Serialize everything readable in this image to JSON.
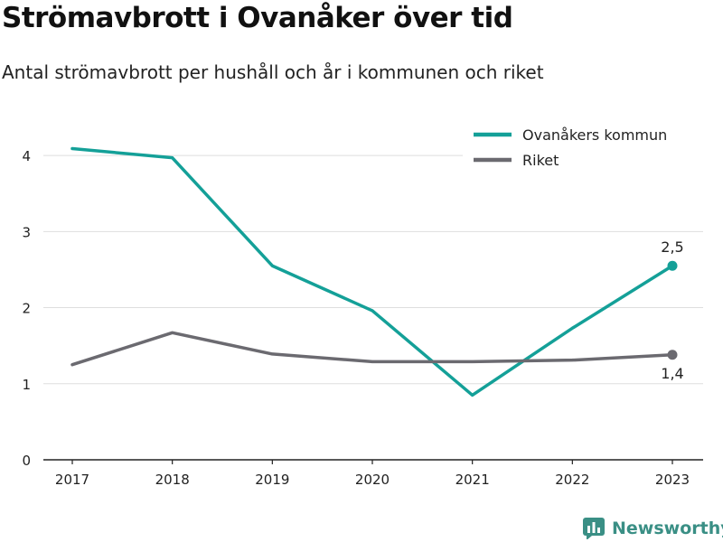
{
  "header": {
    "title": "Strömavbrott i Ovanåker över tid",
    "subtitle": "Antal strömavbrott per hushåll och år i kommunen och riket"
  },
  "brand": {
    "name": "Newsworthy",
    "icon": "newsworthy-logo-icon",
    "color": "#3a8f85"
  },
  "chart_data": {
    "type": "line",
    "title": "Strömavbrott i Ovanåker över tid",
    "subtitle": "Antal strömavbrott per hushåll och år i kommunen och riket",
    "xlabel": "",
    "ylabel": "",
    "x": [
      "2017",
      "2018",
      "2019",
      "2020",
      "2021",
      "2022",
      "2023"
    ],
    "ylim": [
      0,
      4.5
    ],
    "yticks": [
      0,
      1,
      2,
      3,
      4
    ],
    "ytick_labels": [
      "0",
      "1",
      "2",
      "3",
      "4"
    ],
    "grid": true,
    "legend": "top-right",
    "series": [
      {
        "name": "Ovanåkers kommun",
        "color": "#14a098",
        "values": [
          4.09,
          3.97,
          2.55,
          1.96,
          0.85,
          1.73,
          2.55
        ],
        "end_label": "2,5"
      },
      {
        "name": "Riket",
        "color": "#6b6a70",
        "values": [
          1.25,
          1.67,
          1.39,
          1.29,
          1.29,
          1.31,
          1.38
        ],
        "end_label": "1,4"
      }
    ]
  }
}
